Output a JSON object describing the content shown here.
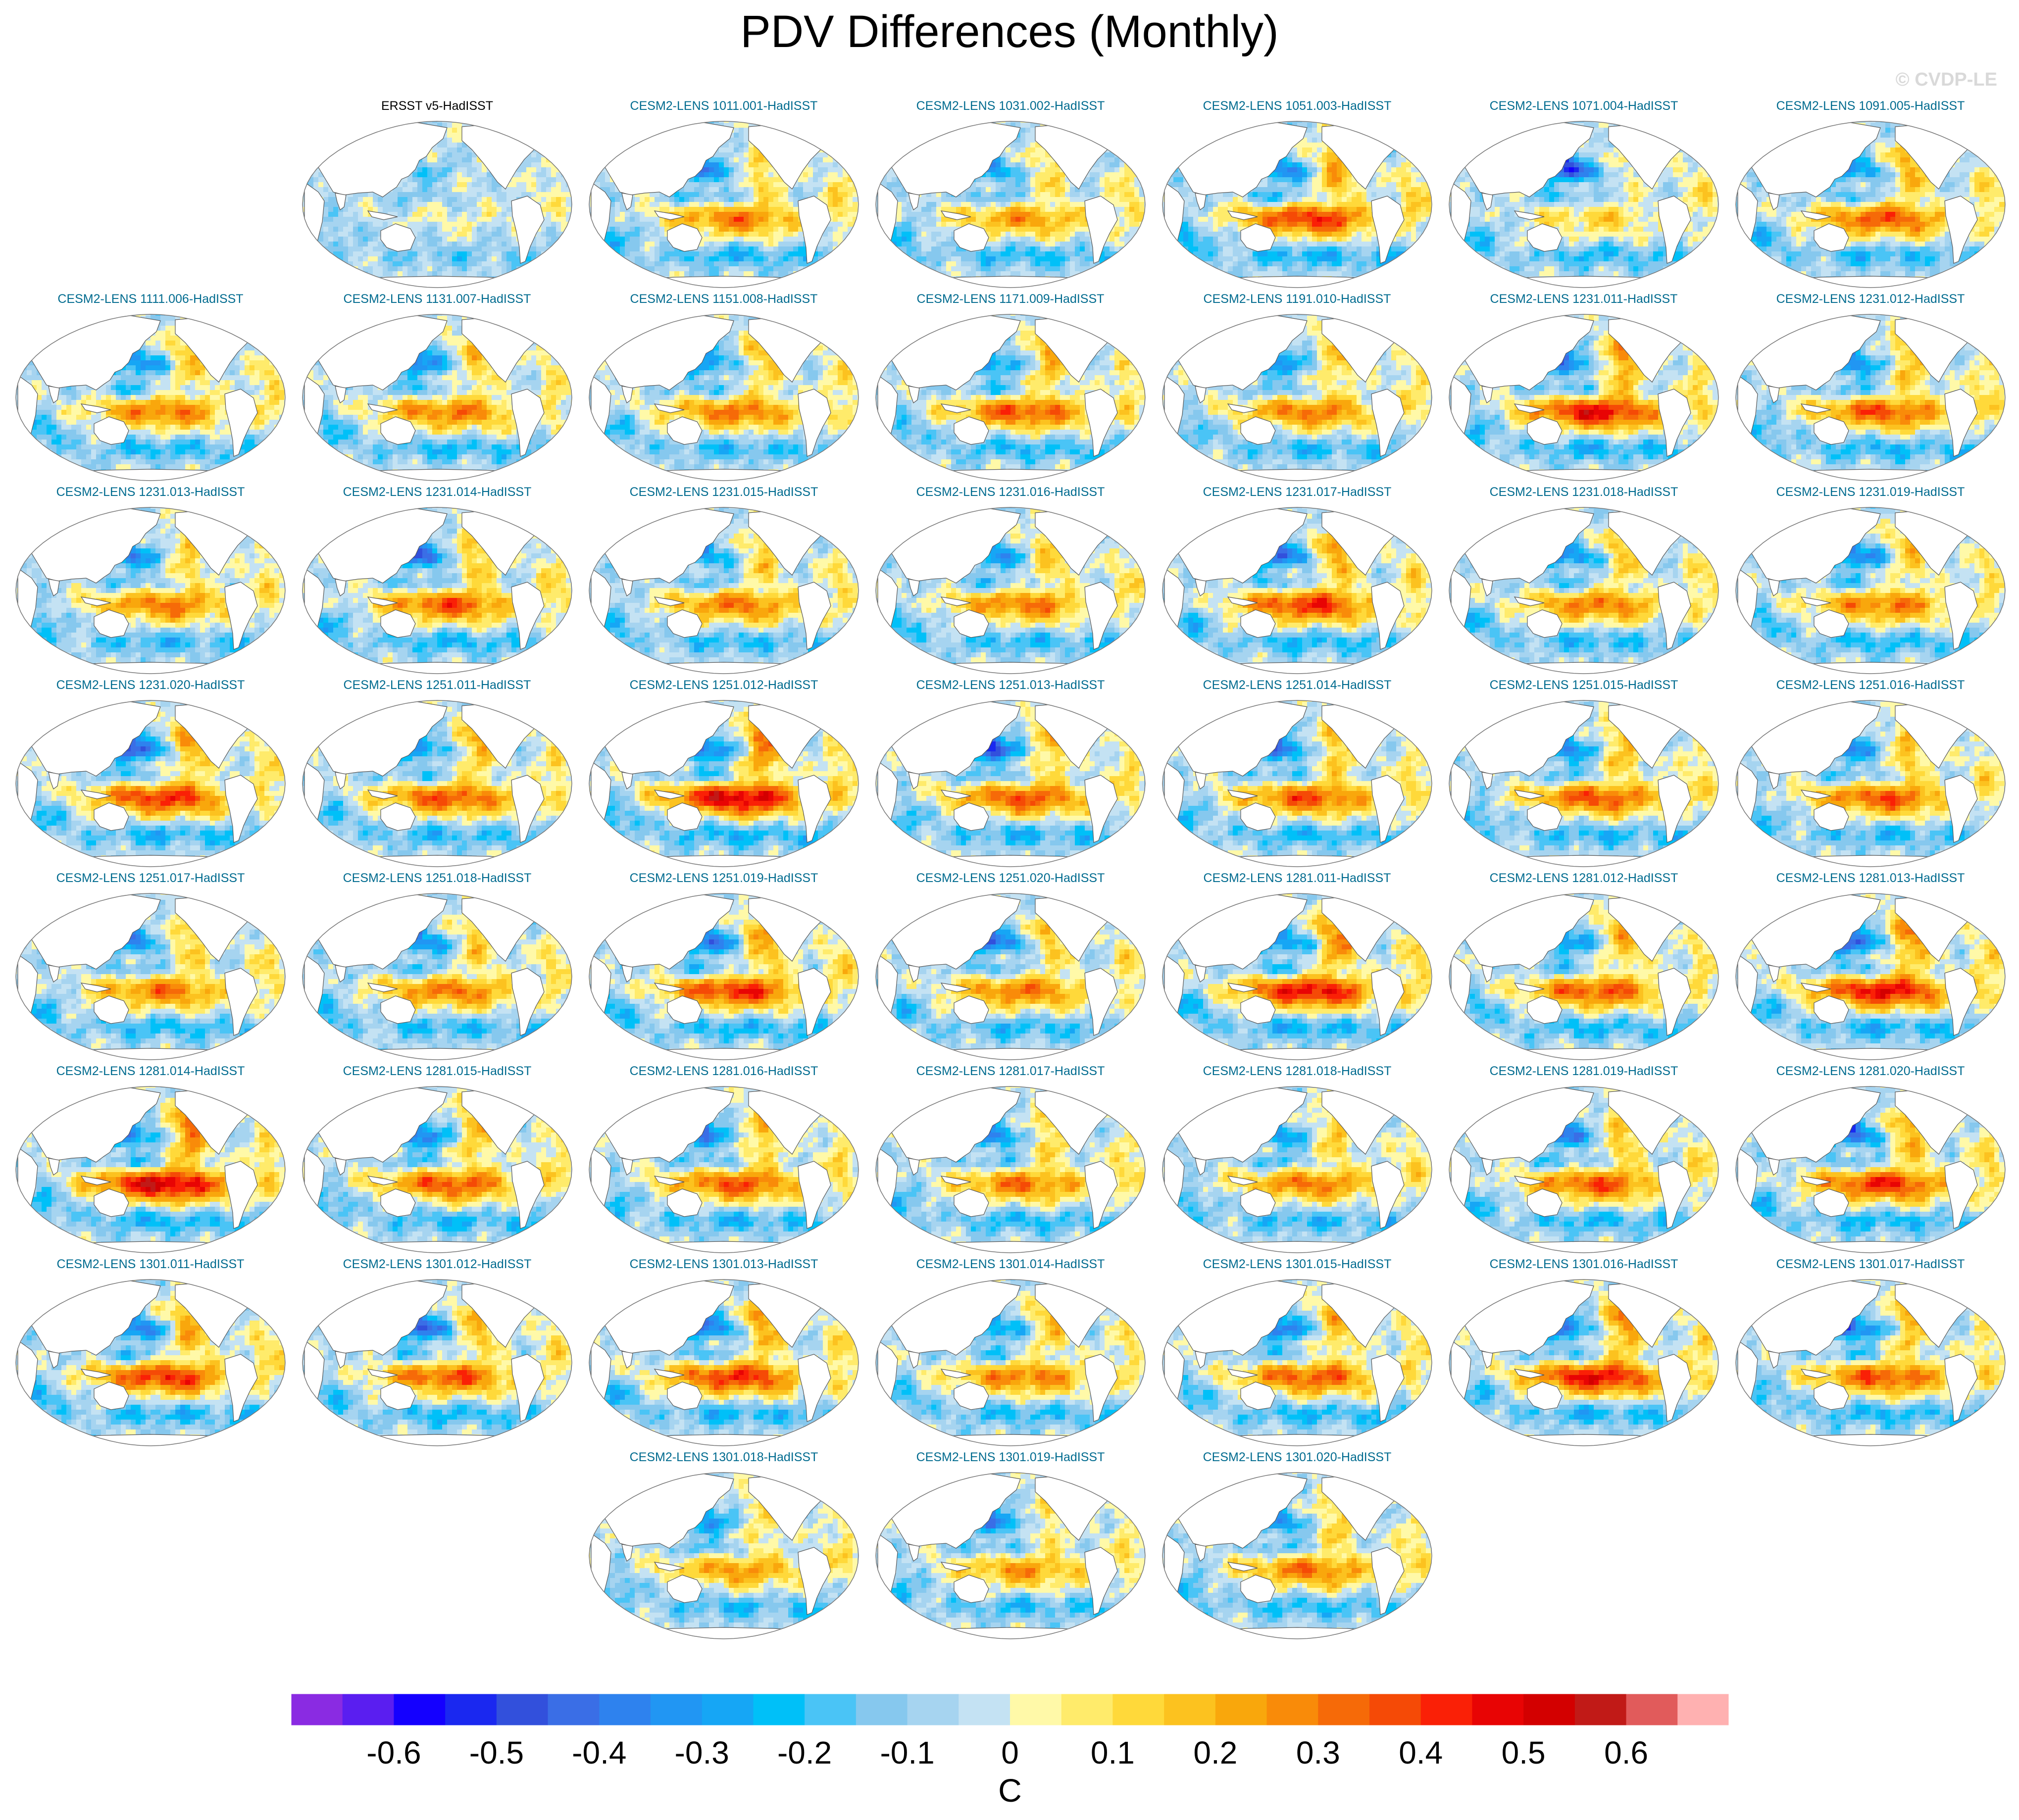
{
  "title": "PDV Differences (Monthly)",
  "copyright": "© CVDP-LE",
  "colors": {
    "land": "#ffffff",
    "coast": "#555555",
    "obs_title": "#000000",
    "model_title": "#006b8f"
  },
  "chart_data": {
    "type": "heatmap",
    "projection": "Robinson (Pacific-centered) global map",
    "variable": "SST pattern difference, Pacific Decadal Variability (monthly)",
    "units": "C",
    "colorbar": {
      "label": "C",
      "tick_labels": [
        "-0.6",
        "-0.5",
        "-0.4",
        "-0.3",
        "-0.2",
        "-0.1",
        "0",
        "0.1",
        "0.2",
        "0.3",
        "0.4",
        "0.5",
        "0.6"
      ],
      "levels": [
        -0.65,
        -0.6,
        -0.55,
        -0.5,
        -0.45,
        -0.4,
        -0.35,
        -0.3,
        -0.25,
        -0.2,
        -0.15,
        -0.1,
        -0.05,
        0,
        0.05,
        0.1,
        0.15,
        0.2,
        0.25,
        0.3,
        0.35,
        0.4,
        0.45,
        0.5,
        0.55,
        0.6,
        0.65,
        0.7
      ],
      "colors": [
        "#8a2be2",
        "#5a1ef0",
        "#1400ff",
        "#1a28f0",
        "#3250dc",
        "#3a6ee6",
        "#2e82ee",
        "#2196f3",
        "#16a6f5",
        "#00c0f8",
        "#4ac4f6",
        "#86c8ee",
        "#a6d4f0",
        "#c4e2f3",
        "#fff9a8",
        "#ffeb6b",
        "#ffd93a",
        "#fcc21f",
        "#f9a70c",
        "#f98b09",
        "#f66a08",
        "#f54a06",
        "#fa2006",
        "#e80404",
        "#d30000",
        "#c11a17",
        "#e15b5b",
        "#ffb1b1"
      ]
    },
    "panels": [
      {
        "title": "ERSST v5-HadISST",
        "type": "obs",
        "amp": 0.18,
        "nw": -0.15,
        "tropic": 0.05
      },
      {
        "title": "CESM2-LENS 1011.001-HadISST",
        "type": "model",
        "amp": 0.33,
        "nw": -0.35,
        "tropic": 0.3
      },
      {
        "title": "CESM2-LENS 1031.002-HadISST",
        "type": "model",
        "amp": 0.3,
        "nw": -0.3,
        "tropic": 0.25
      },
      {
        "title": "CESM2-LENS 1051.003-HadISST",
        "type": "model",
        "amp": 0.36,
        "nw": -0.4,
        "tropic": 0.4
      },
      {
        "title": "CESM2-LENS 1071.004-HadISST",
        "type": "model",
        "amp": 0.3,
        "nw": -0.55,
        "tropic": 0.15
      },
      {
        "title": "CESM2-LENS 1091.005-HadISST",
        "type": "model",
        "amp": 0.32,
        "nw": -0.35,
        "tropic": 0.35
      },
      {
        "title": "CESM2-LENS 1111.006-HadISST",
        "type": "model",
        "amp": 0.31,
        "nw": -0.4,
        "tropic": 0.3
      },
      {
        "title": "CESM2-LENS 1131.007-HadISST",
        "type": "model",
        "amp": 0.31,
        "nw": -0.4,
        "tropic": 0.3
      },
      {
        "title": "CESM2-LENS 1151.008-HadISST",
        "type": "model",
        "amp": 0.3,
        "nw": -0.35,
        "tropic": 0.3
      },
      {
        "title": "CESM2-LENS 1171.009-HadISST",
        "type": "model",
        "amp": 0.32,
        "nw": -0.35,
        "tropic": 0.35
      },
      {
        "title": "CESM2-LENS 1191.010-HadISST",
        "type": "model",
        "amp": 0.3,
        "nw": -0.35,
        "tropic": 0.3
      },
      {
        "title": "CESM2-LENS 1231.011-HadISST",
        "type": "model",
        "amp": 0.36,
        "nw": -0.4,
        "tropic": 0.45
      },
      {
        "title": "CESM2-LENS 1231.012-HadISST",
        "type": "model",
        "amp": 0.33,
        "nw": -0.4,
        "tropic": 0.35
      },
      {
        "title": "CESM2-LENS 1231.013-HadISST",
        "type": "model",
        "amp": 0.31,
        "nw": -0.35,
        "tropic": 0.3
      },
      {
        "title": "CESM2-LENS 1231.014-HadISST",
        "type": "model",
        "amp": 0.33,
        "nw": -0.45,
        "tropic": 0.35
      },
      {
        "title": "CESM2-LENS 1231.015-HadISST",
        "type": "model",
        "amp": 0.3,
        "nw": -0.3,
        "tropic": 0.3
      },
      {
        "title": "CESM2-LENS 1231.016-HadISST",
        "type": "model",
        "amp": 0.3,
        "nw": -0.35,
        "tropic": 0.3
      },
      {
        "title": "CESM2-LENS 1231.017-HadISST",
        "type": "model",
        "amp": 0.33,
        "nw": -0.45,
        "tropic": 0.4
      },
      {
        "title": "CESM2-LENS 1231.018-HadISST",
        "type": "model",
        "amp": 0.31,
        "nw": -0.4,
        "tropic": 0.3
      },
      {
        "title": "CESM2-LENS 1231.019-HadISST",
        "type": "model",
        "amp": 0.31,
        "nw": -0.45,
        "tropic": 0.3
      },
      {
        "title": "CESM2-LENS 1231.020-HadISST",
        "type": "model",
        "amp": 0.33,
        "nw": -0.55,
        "tropic": 0.4
      },
      {
        "title": "CESM2-LENS 1251.011-HadISST",
        "type": "model",
        "amp": 0.31,
        "nw": -0.35,
        "tropic": 0.35
      },
      {
        "title": "CESM2-LENS 1251.012-HadISST",
        "type": "model",
        "amp": 0.36,
        "nw": -0.45,
        "tropic": 0.5
      },
      {
        "title": "CESM2-LENS 1251.013-HadISST",
        "type": "model",
        "amp": 0.33,
        "nw": -0.55,
        "tropic": 0.35
      },
      {
        "title": "CESM2-LENS 1251.014-HadISST",
        "type": "model",
        "amp": 0.32,
        "nw": -0.45,
        "tropic": 0.35
      },
      {
        "title": "CESM2-LENS 1251.015-HadISST",
        "type": "model",
        "amp": 0.32,
        "nw": -0.4,
        "tropic": 0.35
      },
      {
        "title": "CESM2-LENS 1251.016-HadISST",
        "type": "model",
        "amp": 0.31,
        "nw": -0.35,
        "tropic": 0.35
      },
      {
        "title": "CESM2-LENS 1251.017-HadISST",
        "type": "model",
        "amp": 0.31,
        "nw": -0.35,
        "tropic": 0.3
      },
      {
        "title": "CESM2-LENS 1251.018-HadISST",
        "type": "model",
        "amp": 0.31,
        "nw": -0.4,
        "tropic": 0.3
      },
      {
        "title": "CESM2-LENS 1251.019-HadISST",
        "type": "model",
        "amp": 0.34,
        "nw": -0.45,
        "tropic": 0.4
      },
      {
        "title": "CESM2-LENS 1251.020-HadISST",
        "type": "model",
        "amp": 0.31,
        "nw": -0.45,
        "tropic": 0.3
      },
      {
        "title": "CESM2-LENS 1281.011-HadISST",
        "type": "model",
        "amp": 0.36,
        "nw": -0.4,
        "tropic": 0.45
      },
      {
        "title": "CESM2-LENS 1281.012-HadISST",
        "type": "model",
        "amp": 0.32,
        "nw": -0.35,
        "tropic": 0.35
      },
      {
        "title": "CESM2-LENS 1281.013-HadISST",
        "type": "model",
        "amp": 0.35,
        "nw": -0.5,
        "tropic": 0.45
      },
      {
        "title": "CESM2-LENS 1281.014-HadISST",
        "type": "model",
        "amp": 0.36,
        "nw": -0.4,
        "tropic": 0.5
      },
      {
        "title": "CESM2-LENS 1281.015-HadISST",
        "type": "model",
        "amp": 0.32,
        "nw": -0.45,
        "tropic": 0.35
      },
      {
        "title": "CESM2-LENS 1281.016-HadISST",
        "type": "model",
        "amp": 0.33,
        "nw": -0.4,
        "tropic": 0.35
      },
      {
        "title": "CESM2-LENS 1281.017-HadISST",
        "type": "model",
        "amp": 0.31,
        "nw": -0.4,
        "tropic": 0.3
      },
      {
        "title": "CESM2-LENS 1281.018-HadISST",
        "type": "model",
        "amp": 0.32,
        "nw": -0.3,
        "tropic": 0.3
      },
      {
        "title": "CESM2-LENS 1281.019-HadISST",
        "type": "model",
        "amp": 0.32,
        "nw": -0.4,
        "tropic": 0.35
      },
      {
        "title": "CESM2-LENS 1281.020-HadISST",
        "type": "model",
        "amp": 0.33,
        "nw": -0.45,
        "tropic": 0.4
      },
      {
        "title": "CESM2-LENS 1301.011-HadISST",
        "type": "model",
        "amp": 0.33,
        "nw": -0.45,
        "tropic": 0.4
      },
      {
        "title": "CESM2-LENS 1301.012-HadISST",
        "type": "model",
        "amp": 0.32,
        "nw": -0.5,
        "tropic": 0.35
      },
      {
        "title": "CESM2-LENS 1301.013-HadISST",
        "type": "model",
        "amp": 0.34,
        "nw": -0.45,
        "tropic": 0.4
      },
      {
        "title": "CESM2-LENS 1301.014-HadISST",
        "type": "model",
        "amp": 0.3,
        "nw": -0.35,
        "tropic": 0.3
      },
      {
        "title": "CESM2-LENS 1301.015-HadISST",
        "type": "model",
        "amp": 0.33,
        "nw": -0.45,
        "tropic": 0.35
      },
      {
        "title": "CESM2-LENS 1301.016-HadISST",
        "type": "model",
        "amp": 0.34,
        "nw": -0.4,
        "tropic": 0.45
      },
      {
        "title": "CESM2-LENS 1301.017-HadISST",
        "type": "model",
        "amp": 0.33,
        "nw": -0.5,
        "tropic": 0.35
      },
      {
        "title": "CESM2-LENS 1301.018-HadISST",
        "type": "model",
        "amp": 0.3,
        "nw": -0.35,
        "tropic": 0.25
      },
      {
        "title": "CESM2-LENS 1301.019-HadISST",
        "type": "model",
        "amp": 0.3,
        "nw": -0.4,
        "tropic": 0.25
      },
      {
        "title": "CESM2-LENS 1301.020-HadISST",
        "type": "model",
        "amp": 0.31,
        "nw": -0.35,
        "tropic": 0.3
      }
    ]
  }
}
